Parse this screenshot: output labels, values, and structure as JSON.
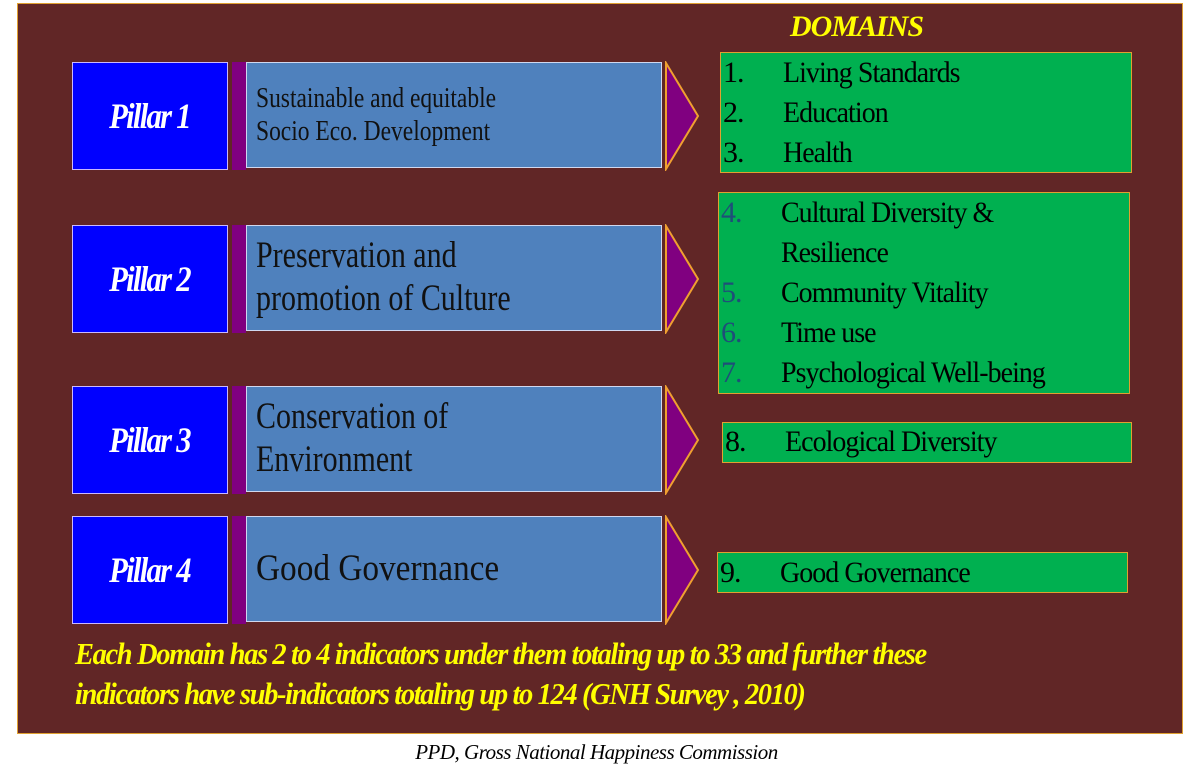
{
  "domains_title": "DOMAINS",
  "pillars": [
    {
      "label": "Pillar 1",
      "lines": [
        "Sustainable and equitable",
        "Socio Eco. Development"
      ]
    },
    {
      "label": "Pillar 2",
      "lines": [
        "Preservation and",
        "promotion of Culture"
      ]
    },
    {
      "label": "Pillar 3",
      "lines": [
        "Conservation of",
        "Environment"
      ]
    },
    {
      "label": "Pillar 4",
      "lines": [
        "Good Governance"
      ]
    }
  ],
  "domain_groups": [
    [
      {
        "num": "1.",
        "label": "Living Standards"
      },
      {
        "num": "2.",
        "label": "Education"
      },
      {
        "num": "3.",
        "label": "Health"
      }
    ],
    [
      {
        "num": "4.",
        "label": "Cultural Diversity &"
      },
      {
        "num": "",
        "label": "Resilience"
      },
      {
        "num": "5.",
        "label": "Community Vitality"
      },
      {
        "num": "6.",
        "label": "Time use"
      },
      {
        "num": "7.",
        "label": "Psychological Well-being"
      }
    ],
    [
      {
        "num": "8.",
        "label": "Ecological Diversity"
      }
    ],
    [
      {
        "num": "9.",
        "label": "Good Governance"
      }
    ]
  ],
  "footer": [
    "Each Domain has 2 to 4 indicators under them totaling up to 33 and further these",
    "indicators have sub-indicators totaling up to 124 (GNH Survey , 2010)"
  ],
  "caption": "PPD, Gross National Happiness Commission",
  "colors": {
    "background": "#612626",
    "pillar": "#0000ff",
    "description": "#4f81bd",
    "arrow": "#800080",
    "domain": "#00b050",
    "highlight": "#ffff00",
    "group2_numbers": "#1f4e79"
  }
}
